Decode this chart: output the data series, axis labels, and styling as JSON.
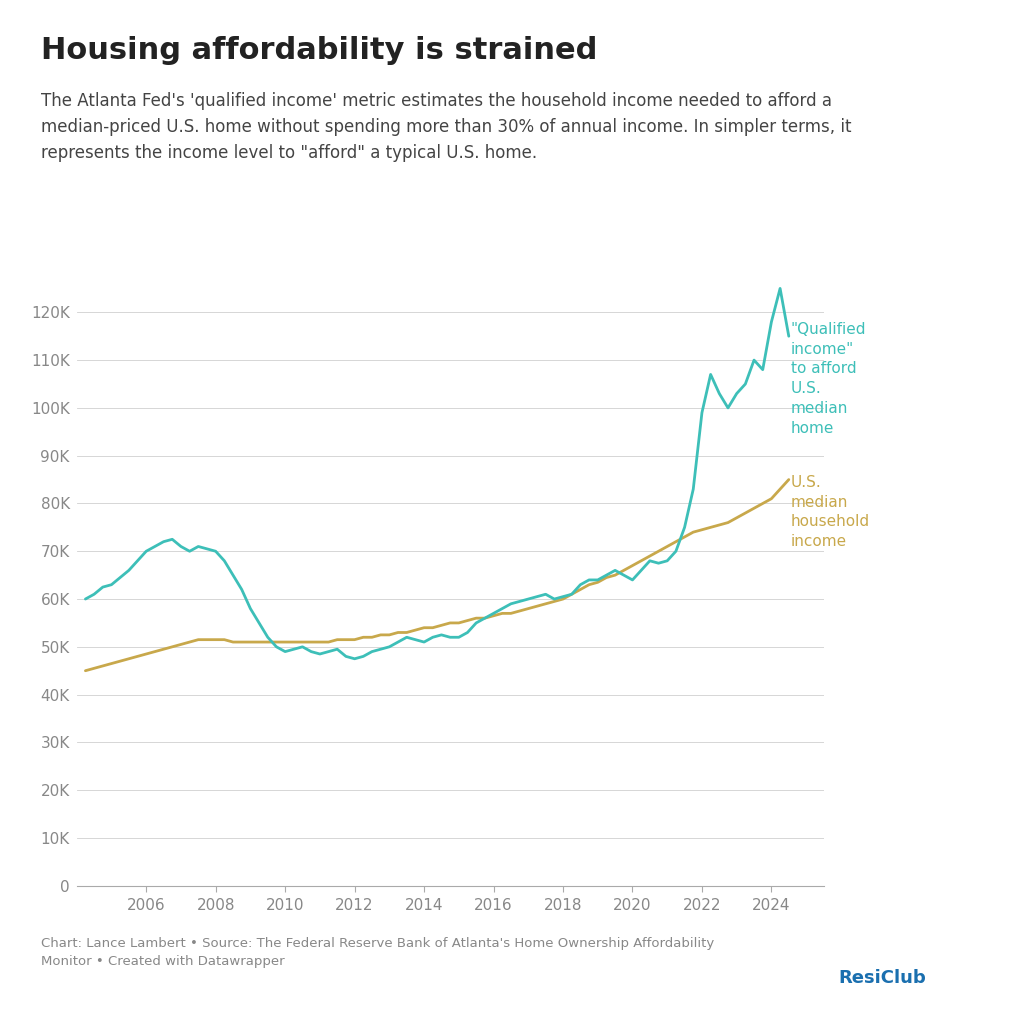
{
  "title": "Housing affordability is strained",
  "subtitle": "The Atlanta Fed's 'qualified income' metric estimates the household income needed to afford a\nmedian-priced U.S. home without spending more than 30% of annual income. In simpler terms, it\nrepresents the income level to \"afford\" a typical U.S. home.",
  "footer": "Chart: Lance Lambert • Source: The Federal Reserve Bank of Atlanta's Home Ownership Affordability\nMonitor • Created with Datawrapper",
  "qualified_income_label": "\"Qualified\nincome\"\nto afford\nU.S.\nmedian\nhome",
  "median_income_label": "U.S.\nmedian\nhousehold\nincome",
  "qualified_income_color": "#3dbfb8",
  "median_income_color": "#c8a84b",
  "background_color": "#ffffff",
  "grid_color": "#d0d0d0",
  "text_color": "#222222",
  "label_color": "#888888",
  "ylim": [
    0,
    135000
  ],
  "yticks": [
    0,
    10000,
    20000,
    30000,
    40000,
    50000,
    60000,
    70000,
    80000,
    90000,
    100000,
    110000,
    120000
  ],
  "ytick_labels": [
    "0",
    "10K",
    "20K",
    "30K",
    "40K",
    "50K",
    "60K",
    "70K",
    "80K",
    "90K",
    "100K",
    "110K",
    "120K"
  ],
  "xlim": [
    2004.0,
    2025.5
  ],
  "xticks": [
    2006,
    2008,
    2010,
    2012,
    2014,
    2016,
    2018,
    2020,
    2022,
    2024
  ],
  "qualified_income_x": [
    2004.25,
    2004.5,
    2004.75,
    2005.0,
    2005.25,
    2005.5,
    2005.75,
    2006.0,
    2006.25,
    2006.5,
    2006.75,
    2007.0,
    2007.25,
    2007.5,
    2007.75,
    2008.0,
    2008.25,
    2008.5,
    2008.75,
    2009.0,
    2009.25,
    2009.5,
    2009.75,
    2010.0,
    2010.25,
    2010.5,
    2010.75,
    2011.0,
    2011.25,
    2011.5,
    2011.75,
    2012.0,
    2012.25,
    2012.5,
    2012.75,
    2013.0,
    2013.25,
    2013.5,
    2013.75,
    2014.0,
    2014.25,
    2014.5,
    2014.75,
    2015.0,
    2015.25,
    2015.5,
    2015.75,
    2016.0,
    2016.25,
    2016.5,
    2016.75,
    2017.0,
    2017.25,
    2017.5,
    2017.75,
    2018.0,
    2018.25,
    2018.5,
    2018.75,
    2019.0,
    2019.25,
    2019.5,
    2019.75,
    2020.0,
    2020.25,
    2020.5,
    2020.75,
    2021.0,
    2021.25,
    2021.5,
    2021.75,
    2022.0,
    2022.25,
    2022.5,
    2022.75,
    2023.0,
    2023.25,
    2023.5,
    2023.75,
    2024.0,
    2024.25,
    2024.5
  ],
  "qualified_income_y": [
    60000,
    61000,
    62500,
    63000,
    64500,
    66000,
    68000,
    70000,
    71000,
    72000,
    72500,
    71000,
    70000,
    71000,
    70500,
    70000,
    68000,
    65000,
    62000,
    58000,
    55000,
    52000,
    50000,
    49000,
    49500,
    50000,
    49000,
    48500,
    49000,
    49500,
    48000,
    47500,
    48000,
    49000,
    49500,
    50000,
    51000,
    52000,
    51500,
    51000,
    52000,
    52500,
    52000,
    52000,
    53000,
    55000,
    56000,
    57000,
    58000,
    59000,
    59500,
    60000,
    60500,
    61000,
    60000,
    60500,
    61000,
    63000,
    64000,
    64000,
    65000,
    66000,
    65000,
    64000,
    66000,
    68000,
    67500,
    68000,
    70000,
    75000,
    83000,
    99000,
    107000,
    103000,
    100000,
    103000,
    105000,
    110000,
    108000,
    118000,
    125000,
    115000
  ],
  "median_income_x": [
    2004.25,
    2004.5,
    2004.75,
    2005.0,
    2005.25,
    2005.5,
    2005.75,
    2006.0,
    2006.25,
    2006.5,
    2006.75,
    2007.0,
    2007.25,
    2007.5,
    2007.75,
    2008.0,
    2008.25,
    2008.5,
    2008.75,
    2009.0,
    2009.25,
    2009.5,
    2009.75,
    2010.0,
    2010.25,
    2010.5,
    2010.75,
    2011.0,
    2011.25,
    2011.5,
    2011.75,
    2012.0,
    2012.25,
    2012.5,
    2012.75,
    2013.0,
    2013.25,
    2013.5,
    2013.75,
    2014.0,
    2014.25,
    2014.5,
    2014.75,
    2015.0,
    2015.25,
    2015.5,
    2015.75,
    2016.0,
    2016.25,
    2016.5,
    2016.75,
    2017.0,
    2017.25,
    2017.5,
    2017.75,
    2018.0,
    2018.25,
    2018.5,
    2018.75,
    2019.0,
    2019.25,
    2019.5,
    2019.75,
    2020.0,
    2020.25,
    2020.5,
    2020.75,
    2021.0,
    2021.25,
    2021.5,
    2021.75,
    2022.0,
    2022.25,
    2022.5,
    2022.75,
    2023.0,
    2023.25,
    2023.5,
    2023.75,
    2024.0,
    2024.25,
    2024.5
  ],
  "median_income_y": [
    45000,
    45500,
    46000,
    46500,
    47000,
    47500,
    48000,
    48500,
    49000,
    49500,
    50000,
    50500,
    51000,
    51500,
    51500,
    51500,
    51500,
    51000,
    51000,
    51000,
    51000,
    51000,
    51000,
    51000,
    51000,
    51000,
    51000,
    51000,
    51000,
    51500,
    51500,
    51500,
    52000,
    52000,
    52500,
    52500,
    53000,
    53000,
    53500,
    54000,
    54000,
    54500,
    55000,
    55000,
    55500,
    56000,
    56000,
    56500,
    57000,
    57000,
    57500,
    58000,
    58500,
    59000,
    59500,
    60000,
    61000,
    62000,
    63000,
    63500,
    64500,
    65000,
    66000,
    67000,
    68000,
    69000,
    70000,
    71000,
    72000,
    73000,
    74000,
    74500,
    75000,
    75500,
    76000,
    77000,
    78000,
    79000,
    80000,
    81000,
    83000,
    85000
  ],
  "resiclub_color": "#1a6faf",
  "title_fontsize": 22,
  "subtitle_fontsize": 12,
  "tick_fontsize": 11,
  "annotation_fontsize": 11,
  "footer_fontsize": 9.5
}
